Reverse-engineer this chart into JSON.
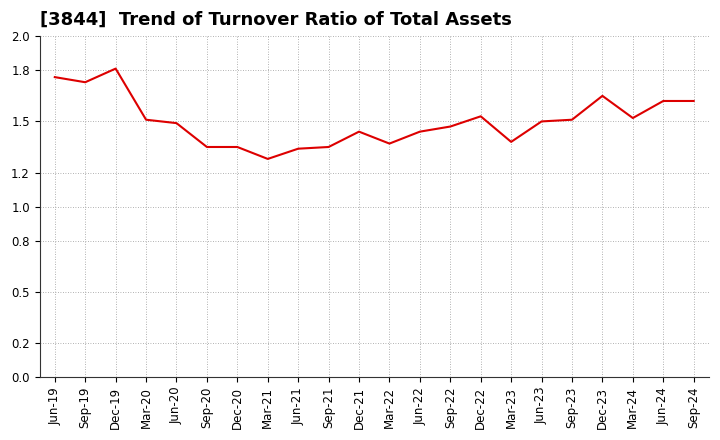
{
  "title": "[3844]  Trend of Turnover Ratio of Total Assets",
  "line_color": "#dd0000",
  "background_color": "#ffffff",
  "grid_color": "#999999",
  "xlabels": [
    "Jun-19",
    "Sep-19",
    "Dec-19",
    "Mar-20",
    "Jun-20",
    "Sep-20",
    "Dec-20",
    "Mar-21",
    "Jun-21",
    "Sep-21",
    "Dec-21",
    "Mar-22",
    "Jun-22",
    "Sep-22",
    "Dec-22",
    "Mar-23",
    "Jun-23",
    "Sep-23",
    "Dec-23",
    "Mar-24",
    "Jun-24",
    "Sep-24"
  ],
  "values": [
    1.76,
    1.73,
    1.81,
    1.51,
    1.49,
    1.35,
    1.35,
    1.28,
    1.34,
    1.35,
    1.44,
    1.37,
    1.44,
    1.47,
    1.53,
    1.38,
    1.5,
    1.51,
    1.65,
    1.52,
    1.62,
    1.62
  ],
  "ylim": [
    0.0,
    2.0
  ],
  "yticks": [
    0.0,
    0.2,
    0.5,
    0.8,
    1.0,
    1.2,
    1.5,
    1.8,
    2.0
  ],
  "title_fontsize": 13,
  "tick_fontsize": 8.5,
  "line_width": 1.5
}
